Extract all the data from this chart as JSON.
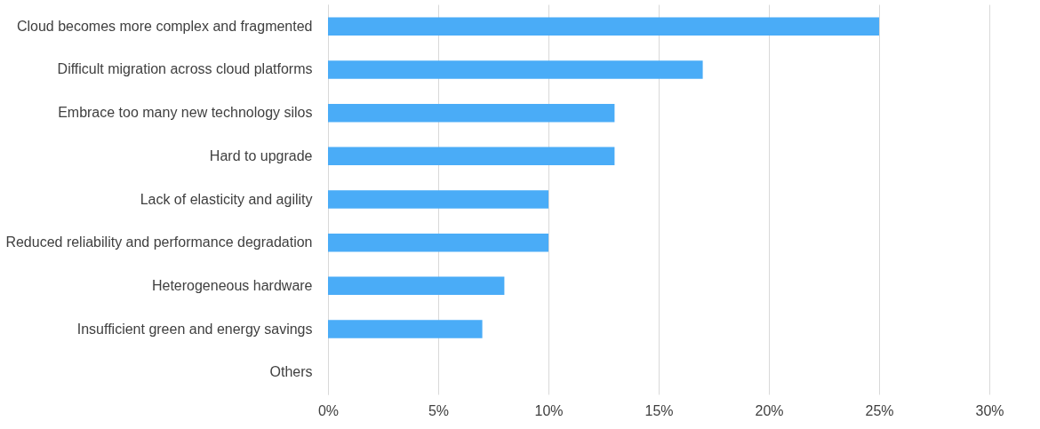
{
  "chart_data": {
    "type": "bar",
    "orientation": "horizontal",
    "categories": [
      "Cloud becomes more complex and fragmented",
      "Difficult migration across cloud platforms",
      "Embrace too many new technology silos",
      "Hard to upgrade",
      "Lack of elasticity and agility",
      "Reduced reliability and performance degradation",
      "Heterogeneous hardware",
      "Insufficient green and energy savings",
      "Others"
    ],
    "values": [
      25,
      17,
      13,
      13,
      10,
      10,
      8,
      7,
      0
    ],
    "color": "#4aacf7",
    "xlim": [
      0,
      30
    ],
    "xticks": [
      {
        "value": 0,
        "label": "0%"
      },
      {
        "value": 5,
        "label": "5%"
      },
      {
        "value": 10,
        "label": "10%"
      },
      {
        "value": 15,
        "label": "15%"
      },
      {
        "value": 20,
        "label": "20%"
      },
      {
        "value": 25,
        "label": "25%"
      },
      {
        "value": 30,
        "label": "30%"
      }
    ],
    "grid": "x"
  }
}
